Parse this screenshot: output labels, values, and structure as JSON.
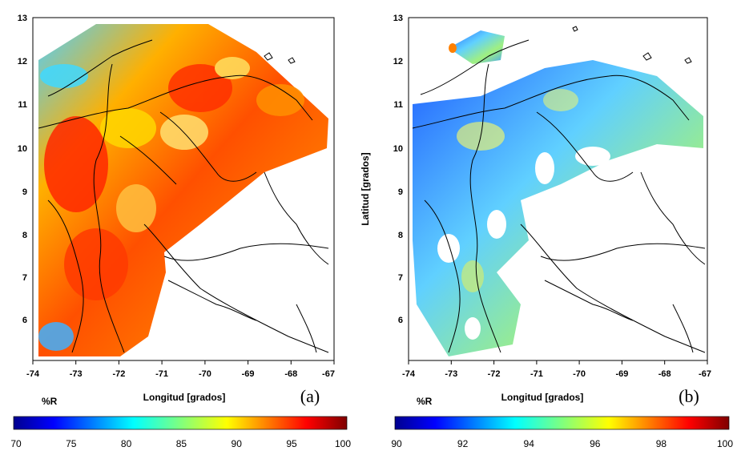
{
  "panels": [
    {
      "id": "a",
      "panel_label": "(a)",
      "xlabel": "Longitud [grados]",
      "ylabel": "",
      "x_ticks": [
        "-74",
        "-73",
        "-72",
        "-71",
        "-70",
        "-69",
        "-68",
        "-67"
      ],
      "y_ticks": [
        "13",
        "12",
        "11",
        "10",
        "9",
        "8",
        "7",
        "6"
      ],
      "colorbar": {
        "unit": "%R",
        "ticks": [
          "70",
          "75",
          "80",
          "85",
          "90",
          "95",
          "100"
        ],
        "range": [
          70,
          100
        ]
      }
    },
    {
      "id": "b",
      "panel_label": "(b)",
      "xlabel": "Longitud [grados]",
      "ylabel": "Latitud [grados]",
      "x_ticks": [
        "-74",
        "-73",
        "-72",
        "-71",
        "-70",
        "-69",
        "-68",
        "-67"
      ],
      "y_ticks": [
        "13",
        "12",
        "11",
        "10",
        "9",
        "8",
        "7",
        "6"
      ],
      "colorbar": {
        "unit": "%R",
        "ticks": [
          "90",
          "92",
          "94",
          "96",
          "98",
          "100"
        ],
        "range": [
          90,
          100
        ]
      }
    }
  ],
  "colors": {
    "low": "#00008f",
    "mid": "#7fff7f",
    "high": "#7f0000",
    "coast": "#000000"
  }
}
